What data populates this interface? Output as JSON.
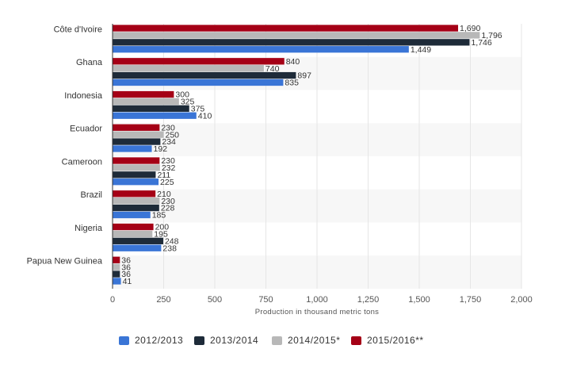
{
  "chart_data": {
    "type": "bar",
    "orientation": "horizontal",
    "categories": [
      "Côte d'Ivoire",
      "Ghana",
      "Indonesia",
      "Ecuador",
      "Cameroon",
      "Brazil",
      "Nigeria",
      "Papua New Guinea"
    ],
    "series": [
      {
        "name": "2015/2016**",
        "color": "#a50016",
        "values": [
          1690,
          840,
          300,
          230,
          230,
          210,
          200,
          36
        ],
        "labels": [
          "1,690",
          "840",
          "300",
          "230",
          "230",
          "210",
          "200",
          "36"
        ]
      },
      {
        "name": "2014/2015*",
        "color": "#b8b8b8",
        "values": [
          1796,
          740,
          325,
          250,
          232,
          230,
          195,
          36
        ],
        "labels": [
          "1,796",
          "740",
          "325",
          "250",
          "232",
          "230",
          "195",
          "36"
        ]
      },
      {
        "name": "2013/2014",
        "color": "#1e2b39",
        "values": [
          1746,
          897,
          375,
          234,
          211,
          228,
          248,
          36
        ],
        "labels": [
          "1,746",
          "897",
          "375",
          "234",
          "211",
          "228",
          "248",
          "36"
        ]
      },
      {
        "name": "2012/2013",
        "color": "#3a75d6",
        "values": [
          1449,
          835,
          410,
          192,
          225,
          185,
          238,
          41
        ],
        "labels": [
          "1,449",
          "835",
          "410",
          "192",
          "225",
          "185",
          "238",
          "41"
        ]
      }
    ],
    "legend_order": [
      3,
      2,
      1,
      0
    ],
    "xlabel": "Production in thousand metric tons",
    "xlim": [
      0,
      2000
    ],
    "xticks": [
      0,
      250,
      500,
      750,
      1000,
      1250,
      1500,
      1750,
      2000
    ],
    "xtick_labels": [
      "0",
      "250",
      "500",
      "750",
      "1,000",
      "1,250",
      "1,500",
      "1,750",
      "2,000"
    ],
    "grid": "vertical",
    "alternating_band_color": "#f7f7f7",
    "legend_position": "bottom"
  }
}
